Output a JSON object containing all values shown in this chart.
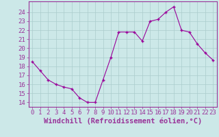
{
  "x": [
    0,
    1,
    2,
    3,
    4,
    5,
    6,
    7,
    8,
    9,
    10,
    11,
    12,
    13,
    14,
    15,
    16,
    17,
    18,
    19,
    20,
    21,
    22,
    23
  ],
  "y": [
    18.5,
    17.5,
    16.5,
    16.0,
    15.7,
    15.5,
    14.5,
    14.0,
    14.0,
    16.5,
    19.0,
    21.8,
    21.8,
    21.8,
    20.8,
    23.0,
    23.2,
    24.0,
    24.6,
    22.0,
    21.8,
    20.5,
    19.5,
    18.7
  ],
  "line_color": "#990099",
  "marker": "+",
  "bg_color": "#cce8e8",
  "grid_color": "#aacccc",
  "axis_color": "#993399",
  "tick_color": "#993399",
  "xlabel": "Windchill (Refroidissement éolien,°C)",
  "ylim": [
    13.5,
    25.2
  ],
  "xlim": [
    -0.5,
    23.5
  ],
  "yticks": [
    14,
    15,
    16,
    17,
    18,
    19,
    20,
    21,
    22,
    23,
    24
  ],
  "xticks": [
    0,
    1,
    2,
    3,
    4,
    5,
    6,
    7,
    8,
    9,
    10,
    11,
    12,
    13,
    14,
    15,
    16,
    17,
    18,
    19,
    20,
    21,
    22,
    23
  ],
  "fontsize": 6.5,
  "xlabel_fontsize": 7.5
}
